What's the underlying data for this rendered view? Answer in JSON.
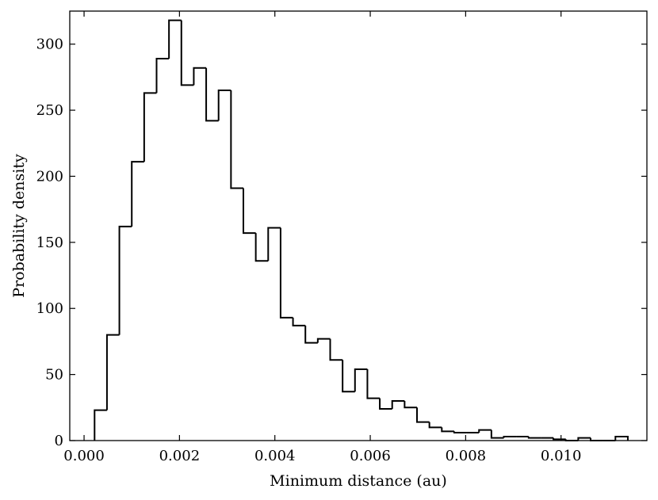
{
  "chart_data": {
    "type": "bar",
    "histogram_style": "step",
    "title": "",
    "xlabel": "Minimum distance (au)",
    "ylabel": "Probability density",
    "xlim": [
      -0.0003,
      0.0118
    ],
    "ylim": [
      0,
      325
    ],
    "xticks": [
      0.0,
      0.002,
      0.004,
      0.006,
      0.008,
      0.01
    ],
    "xtick_labels": [
      "0.000",
      "0.002",
      "0.004",
      "0.006",
      "0.008",
      "0.010"
    ],
    "yticks": [
      0,
      50,
      100,
      150,
      200,
      250,
      300
    ],
    "ytick_labels": [
      "0",
      "50",
      "100",
      "150",
      "200",
      "250",
      "300"
    ],
    "grid": false,
    "line_color": "#000000",
    "bin_width": 0.00026,
    "bin_edges": [
      0.00022,
      0.00048,
      0.00074,
      0.001,
      0.00126,
      0.00152,
      0.00178,
      0.00204,
      0.0023,
      0.00256,
      0.00282,
      0.00308,
      0.00334,
      0.0036,
      0.00386,
      0.00412,
      0.00438,
      0.00464,
      0.0049,
      0.00516,
      0.00542,
      0.00568,
      0.00594,
      0.0062,
      0.00646,
      0.00672,
      0.00698,
      0.00724,
      0.0075,
      0.00776,
      0.00802,
      0.00828,
      0.00854,
      0.0088,
      0.00906,
      0.00932,
      0.00958,
      0.00984,
      0.0101,
      0.01036,
      0.01062,
      0.01088,
      0.01114,
      0.0114
    ],
    "values": [
      23,
      80,
      162,
      211,
      263,
      289,
      318,
      269,
      282,
      242,
      265,
      191,
      157,
      136,
      161,
      93,
      87,
      74,
      77,
      61,
      37,
      54,
      32,
      24,
      30,
      25,
      14,
      10,
      7,
      6,
      6,
      8,
      2,
      3,
      3,
      2,
      2,
      1,
      0,
      2,
      0,
      0,
      3
    ]
  }
}
